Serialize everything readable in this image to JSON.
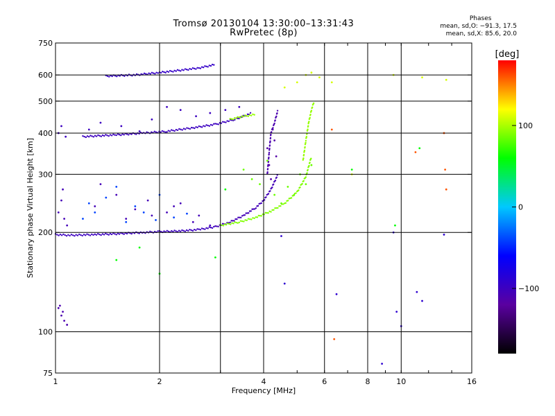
{
  "title": {
    "line1": "Tromsø 20130104 13:30:00–13:31:43",
    "line2": "RwPretec (8p)"
  },
  "stats": {
    "header": "Phases",
    "line_o": "mean, sd,O: −91.3, 17.5",
    "line_x": "mean, sd,X:  85.6, 20.0"
  },
  "chart_data": {
    "type": "scatter",
    "xlabel": "Frequency [MHz]",
    "ylabel": "Stationary phase Virtual Height [km]",
    "xscale": "log",
    "yscale": "log",
    "xlim": [
      1,
      16
    ],
    "ylim": [
      75,
      750
    ],
    "xticks": [
      1,
      2,
      4,
      6,
      8,
      10,
      16
    ],
    "yticks": [
      75,
      100,
      200,
      300,
      400,
      500,
      600,
      750
    ],
    "xgrid": [
      2,
      3,
      4,
      6,
      8,
      10
    ],
    "ygrid": [
      100,
      200,
      300,
      400,
      500,
      600
    ],
    "grid": true,
    "colorbar": {
      "label": "[deg]",
      "min": -180,
      "max": 180,
      "ticks": [
        100,
        0,
        -100
      ],
      "tick_labels": [
        "100",
        "0",
        "−100"
      ],
      "colors": [
        "#000000",
        "#5a00a0",
        "#0000ff",
        "#00c8ff",
        "#00ff00",
        "#ffff00",
        "#ff0000"
      ]
    },
    "traces": [
      {
        "name": "",
        "kind": "line",
        "phase": -100,
        "f": [
          1.0,
          1.1,
          1.3,
          1.5,
          1.8,
          2.0,
          2.3,
          2.6,
          2.9
        ],
        "h": [
          197,
          196,
          197,
          198,
          200,
          201,
          202,
          204,
          208
        ]
      },
      {
        "name": "",
        "kind": "line",
        "phase": -105,
        "f": [
          2.9,
          3.2,
          3.5,
          3.8,
          4.0,
          4.2,
          4.4
        ],
        "h": [
          208,
          215,
          225,
          238,
          250,
          270,
          300
        ]
      },
      {
        "name": "",
        "kind": "line",
        "phase": 90,
        "f": [
          3.0,
          3.4,
          3.8,
          4.2,
          4.6,
          5.0,
          5.3,
          5.5
        ],
        "h": [
          210,
          215,
          222,
          232,
          245,
          265,
          295,
          340
        ]
      },
      {
        "name": "",
        "kind": "line",
        "phase": -110,
        "f": [
          4.1,
          4.15,
          4.2,
          4.3,
          4.4
        ],
        "h": [
          300,
          350,
          400,
          430,
          470
        ]
      },
      {
        "name": "",
        "kind": "line",
        "phase": 95,
        "f": [
          5.2,
          5.3,
          5.4,
          5.5,
          5.6
        ],
        "h": [
          330,
          380,
          430,
          470,
          500
        ]
      },
      {
        "name": "",
        "kind": "line",
        "phase": -100,
        "f": [
          1.2,
          1.5,
          1.8,
          2.1,
          2.5,
          2.9,
          3.3,
          3.7
        ],
        "h": [
          390,
          395,
          400,
          405,
          415,
          425,
          440,
          460
        ]
      },
      {
        "name": "",
        "kind": "line",
        "phase": 95,
        "f": [
          3.2,
          3.5,
          3.8
        ],
        "h": [
          440,
          450,
          455
        ]
      },
      {
        "name": "",
        "kind": "line",
        "phase": -95,
        "f": [
          1.4,
          1.7,
          2.0,
          2.3,
          2.6,
          2.9
        ],
        "h": [
          595,
          600,
          610,
          620,
          630,
          645
        ]
      }
    ],
    "scatter": [
      {
        "f": [
          1.02,
          1.04,
          1.06,
          1.08,
          1.05,
          1.03
        ],
        "h": [
          118,
          112,
          108,
          105,
          115,
          120
        ],
        "phase": -110
      },
      {
        "f": [
          1.02,
          1.04,
          1.06,
          1.08,
          1.3,
          1.5,
          1.7,
          1.9,
          2.1,
          2.3,
          2.5,
          1.05,
          1.35,
          1.6,
          1.85,
          2.2,
          2.6,
          2.8
        ],
        "h": [
          230,
          250,
          220,
          210,
          240,
          260,
          235,
          225,
          230,
          245,
          215,
          270,
          280,
          220,
          250,
          240,
          225,
          210
        ],
        "phase": -105
      },
      {
        "f": [
          1.2,
          1.3,
          1.4,
          1.6,
          1.8,
          2.0,
          2.2,
          1.25,
          1.5,
          1.7,
          1.95,
          2.4
        ],
        "h": [
          220,
          230,
          255,
          215,
          230,
          260,
          222,
          245,
          275,
          240,
          218,
          228
        ],
        "phase": -40
      },
      {
        "f": [
          1.02,
          1.04,
          1.07,
          1.25,
          1.35,
          1.55,
          1.75,
          1.9,
          2.1,
          2.3,
          2.55,
          2.8,
          3.1,
          3.4
        ],
        "h": [
          400,
          420,
          390,
          410,
          430,
          420,
          405,
          440,
          480,
          470,
          450,
          460,
          470,
          480
        ],
        "phase": -100
      },
      {
        "f": [
          3.5,
          3.7,
          3.9,
          4.1,
          4.3,
          4.5,
          4.7,
          4.9,
          5.1,
          5.3,
          5.5
        ],
        "h": [
          310,
          290,
          280,
          330,
          260,
          245,
          275,
          260,
          300,
          280,
          320
        ],
        "phase": 85
      },
      {
        "f": [
          4.1,
          4.15,
          4.2,
          4.25,
          4.3,
          4.35
        ],
        "h": [
          360,
          320,
          290,
          410,
          380,
          340
        ],
        "phase": -115
      },
      {
        "f": [
          4.6,
          5.0,
          5.3,
          5.5,
          5.8,
          6.3,
          7.2,
          9.5,
          11.5,
          13.5
        ],
        "h": [
          550,
          570,
          600,
          610,
          590,
          570,
          300,
          600,
          590,
          580
        ],
        "phase": 110
      },
      {
        "f": [
          6.3,
          6.4,
          11.0,
          13.3,
          13.4,
          13.5
        ],
        "h": [
          410,
          95,
          350,
          400,
          310,
          270
        ],
        "phase": 160
      },
      {
        "f": [
          4.5,
          4.6,
          6.5,
          8.8,
          9.5,
          9.7,
          10.0,
          11.1,
          11.5,
          13.3
        ],
        "h": [
          195,
          140,
          130,
          80,
          200,
          115,
          104,
          132,
          124,
          197
        ],
        "phase": -90
      },
      {
        "f": [
          1.5,
          1.75,
          2.0,
          2.9,
          3.1,
          7.2,
          9.6,
          11.3
        ],
        "h": [
          165,
          180,
          150,
          168,
          270,
          310,
          210,
          360
        ],
        "phase": 60
      }
    ]
  }
}
